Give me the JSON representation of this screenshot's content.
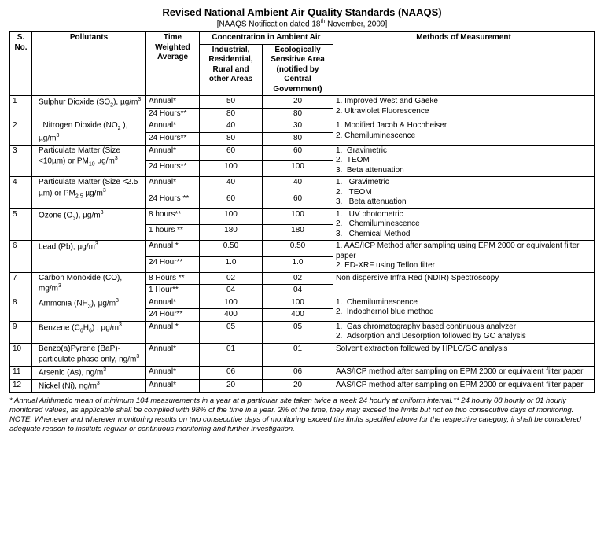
{
  "title": "Revised National Ambient Air Quality Standards (NAAQS)",
  "subtitle_pre": "[NAAQS Notification dated 18",
  "subtitle_sup": "th",
  "subtitle_post": " November, 2009]",
  "headers": {
    "sno": "S. No.",
    "pollutants": "Pollutants",
    "time": "Time Weighted Average",
    "concentration": "Concentration in Ambient Air",
    "industrial": "Industrial, Residential, Rural and other Areas",
    "ecological": "Ecologically Sensitive Area (notified by Central Government)",
    "methods": "Methods of Measurement"
  },
  "rows": [
    {
      "sno": "1",
      "pollutant_html": "Sulphur Dioxide (SO<sub>2</sub>), µg/m<sup>3</sup>",
      "twa": [
        "Annual*",
        "24 Hours**"
      ],
      "ind": [
        "50",
        "80"
      ],
      "eco": [
        "20",
        "80"
      ],
      "methods": "1. Improved West and Gaeke<br>2. Ultraviolet Fluorescence"
    },
    {
      "sno": "2",
      "pollutant_html": "&nbsp;&nbsp;Nitrogen Dioxide (NO<sub>2</sub> ), µg/m<sup>3</sup>",
      "twa": [
        "Annual*",
        "24 Hours**"
      ],
      "ind": [
        "40",
        "80"
      ],
      "eco": [
        "30",
        "80"
      ],
      "methods": "1. Modified  Jacob & Hochheiser<br>2. Chemiluminescence"
    },
    {
      "sno": "3",
      "pollutant_html": "Particulate Matter (Size &lt;10µm) or PM<sub>10</sub> µg/m<sup>3</sup>",
      "twa": [
        "Annual*",
        "24 Hours**"
      ],
      "ind": [
        "60",
        "100"
      ],
      "eco": [
        "60",
        "100"
      ],
      "methods": "1.&nbsp;&nbsp;Gravimetric<br>2.&nbsp;&nbsp;TEOM<br>3.&nbsp;&nbsp;Beta attenuation"
    },
    {
      "sno": "4",
      "pollutant_html": "Particulate Matter (Size &lt;2.5 µm) or  PM<sub>2.5</sub> µg/m<sup>3</sup>",
      "twa": [
        "Annual*",
        "24 Hours **"
      ],
      "ind": [
        "40",
        "60"
      ],
      "eco": [
        "40",
        "60"
      ],
      "methods": "1.&nbsp;&nbsp;&nbsp;Gravimetric<br>2.&nbsp;&nbsp;&nbsp;TEOM<br>3.&nbsp;&nbsp;&nbsp;Beta attenuation"
    },
    {
      "sno": "5",
      "pollutant_html": "Ozone (O<sub>3</sub>), µg/m<sup>3</sup>",
      "twa": [
        "8 hours**",
        "1 hours **"
      ],
      "ind": [
        "100",
        "180"
      ],
      "eco": [
        "100",
        "180"
      ],
      "methods": "1.&nbsp;&nbsp;&nbsp;UV photometric<br>2.&nbsp;&nbsp;&nbsp;Chemiluminescence<br>3.&nbsp;&nbsp;&nbsp;Chemical Method"
    },
    {
      "sno": "6",
      "pollutant_html": "Lead (Pb), µg/m<sup>3</sup>",
      "twa": [
        "Annual *",
        "24 Hour**"
      ],
      "ind": [
        "0.50",
        "1.0"
      ],
      "eco": [
        "0.50",
        "1.0"
      ],
      "methods": "1. AAS/ICP  Method after  sampling using EPM 2000 or equivalent filter paper<br>2. ED-XRF using Teflon filter"
    },
    {
      "sno": "7",
      "pollutant_html": "Carbon Monoxide (CO), mg/m<sup>3</sup>",
      "twa": [
        "8 Hours **",
        "1 Hour**"
      ],
      "ind": [
        "02",
        "04"
      ],
      "eco": [
        "02",
        "04"
      ],
      "methods": "Non dispersive Infra Red (NDIR) Spectroscopy"
    },
    {
      "sno": "8",
      "pollutant_html": "Ammonia (NH<sub>3</sub>), µg/m<sup>3</sup>",
      "twa": [
        "Annual*",
        "24 Hour**"
      ],
      "ind": [
        "100",
        "400"
      ],
      "eco": [
        "100",
        "400"
      ],
      "methods": "1.&nbsp;&nbsp;Chemiluminescence<br>2.&nbsp;&nbsp;Indophernol blue method"
    },
    {
      "sno": "9",
      "pollutant_html": "Benzene (C<sub>6</sub>H<sub>6</sub>) , µg/m<sup>3</sup>",
      "twa": [
        "Annual *"
      ],
      "ind": [
        "05"
      ],
      "eco": [
        "05"
      ],
      "methods": "1.&nbsp;&nbsp;Gas chromatography based continuous analyzer<br>2.&nbsp;&nbsp;Adsorption and Desorption followed by GC analysis"
    },
    {
      "sno": "10",
      "pollutant_html": "Benzo(a)Pyrene (BaP)- particulate phase only, ng/m<sup>3</sup>",
      "twa": [
        "Annual*"
      ],
      "ind": [
        "01"
      ],
      "eco": [
        "01"
      ],
      "methods": "Solvent extraction followed by HPLC/GC analysis"
    },
    {
      "sno": "11",
      "pollutant_html": "Arsenic (As), ng/m<sup>3</sup>",
      "twa": [
        "Annual*"
      ],
      "ind": [
        "06"
      ],
      "eco": [
        "06"
      ],
      "methods": "AAS/ICP method after sampling on EPM 2000 or equivalent filter paper"
    },
    {
      "sno": "12",
      "pollutant_html": "Nickel (Ni), ng/m<sup>3</sup>",
      "twa": [
        "Annual*"
      ],
      "ind": [
        "20"
      ],
      "eco": [
        "20"
      ],
      "methods": "AAS/ICP method after sampling on EPM 2000 or equivalent filter paper"
    }
  ],
  "footnotes": [
    "* Annual Arithmetic mean of minimum 104 measurements in a year at a particular site taken twice a week 24 hourly at uniform interval.**   24 hourly 08 hourly or 01 hourly monitored values, as applicable shall be complied with 98% of the time in a year. 2% of the time, they may exceed the limits but not on two consecutive days of monitoring.",
    "NOTE: Whenever and wherever monitoring results on two consecutive days of monitoring exceed the limits specified above for the respective category, it shall be considered adequate reason to institute regular or continuous monitoring and further investigation."
  ],
  "style": {
    "border_color": "#000000",
    "background": "#ffffff",
    "title_fontsize": 13,
    "cell_fontsize": 10,
    "footnote_fontsize": 9.5
  }
}
